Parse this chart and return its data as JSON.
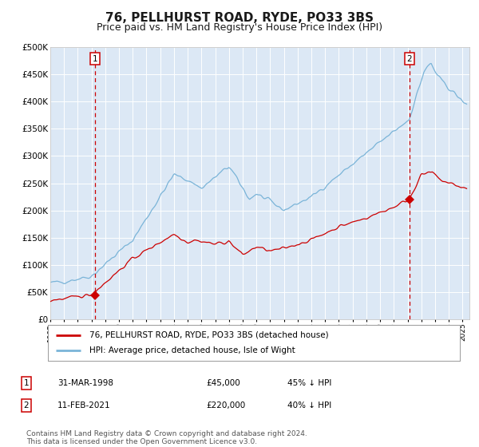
{
  "title": "76, PELLHURST ROAD, RYDE, PO33 3BS",
  "subtitle": "Price paid vs. HM Land Registry's House Price Index (HPI)",
  "title_fontsize": 11,
  "subtitle_fontsize": 9,
  "background_color": "#ffffff",
  "plot_bg_color": "#dce8f5",
  "grid_color": "#ffffff",
  "hpi_color": "#7ab4d8",
  "price_color": "#cc0000",
  "marker_color": "#cc0000",
  "dashed_line_color": "#cc0000",
  "ylim": [
    0,
    500000
  ],
  "yticks": [
    0,
    50000,
    100000,
    150000,
    200000,
    250000,
    300000,
    350000,
    400000,
    450000,
    500000
  ],
  "ytick_labels": [
    "£0",
    "£50K",
    "£100K",
    "£150K",
    "£200K",
    "£250K",
    "£300K",
    "£350K",
    "£400K",
    "£450K",
    "£500K"
  ],
  "xmin": 1995,
  "xmax": 2025.5,
  "purchase1_date_num": 1998.24,
  "purchase1_price": 45000,
  "purchase2_date_num": 2021.12,
  "purchase2_price": 220000,
  "legend_items": [
    "76, PELLHURST ROAD, RYDE, PO33 3BS (detached house)",
    "HPI: Average price, detached house, Isle of Wight"
  ],
  "table_rows": [
    [
      "1",
      "31-MAR-1998",
      "£45,000",
      "45% ↓ HPI"
    ],
    [
      "2",
      "11-FEB-2021",
      "£220,000",
      "40% ↓ HPI"
    ]
  ],
  "footnote": "Contains HM Land Registry data © Crown copyright and database right 2024.\nThis data is licensed under the Open Government Licence v3.0.",
  "footnote_fontsize": 6.5
}
